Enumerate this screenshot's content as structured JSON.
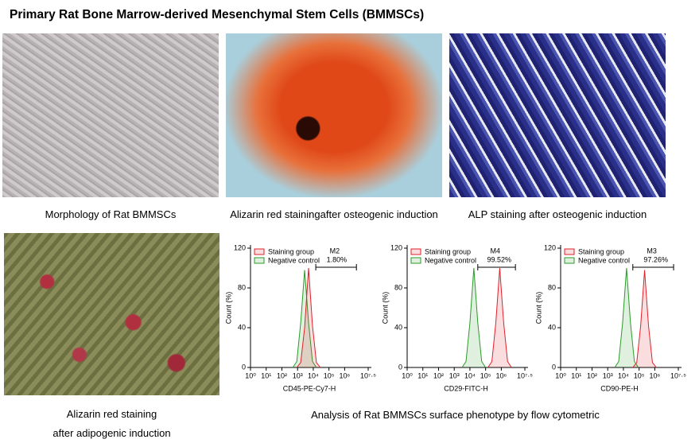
{
  "title": "Primary Rat Bone Marrow-derived Mesenchymal Stem Cells (BMMSCs)",
  "panels": [
    {
      "caption": "Morphology of Rat BMMSCs"
    },
    {
      "caption": "Alizarin red stainingafter osteogenic induction"
    },
    {
      "caption": "ALP staining after osteogenic induction"
    },
    {
      "caption": [
        "Alizarin red staining",
        "after adipogenic induction"
      ]
    }
  ],
  "flow_caption": "Analysis of Rat BMMSCs surface phenotype by flow cytometric",
  "chart_data": [
    {
      "type": "histogram-overlay",
      "xlabel": "CD45-PE-Cy7-H",
      "ylabel": "Count (%)",
      "log_scale": true,
      "xlim": [
        1,
        31622777
      ],
      "ylim": [
        0,
        120
      ],
      "yticks": [
        0,
        40,
        80,
        120
      ],
      "xticks": [
        {
          "value": 1,
          "label": "10⁰"
        },
        {
          "value": 10,
          "label": "10¹"
        },
        {
          "value": 100,
          "label": "10²"
        },
        {
          "value": 1000,
          "label": "10³"
        },
        {
          "value": 10000,
          "label": "10⁴"
        },
        {
          "value": 100000,
          "label": "10⁵"
        },
        {
          "value": 1000000,
          "label": "10⁶"
        },
        {
          "value": 31622777,
          "label": "10⁷·⁵"
        }
      ],
      "series": [
        {
          "name": "Staining group",
          "color": "#e0202a",
          "x": [
            891,
            1585,
            2818,
            5012,
            8913,
            15849,
            28184
          ],
          "values": [
            0,
            5,
            40,
            100,
            42,
            5,
            0
          ]
        },
        {
          "name": "Negative control",
          "color": "#2a9a2a",
          "x": [
            501,
            891,
            1585,
            2818,
            5012,
            8913,
            15849
          ],
          "values": [
            0,
            6,
            45,
            98,
            45,
            6,
            0
          ]
        }
      ],
      "gate": {
        "name": "M2",
        "label": "1.80%",
        "range": [
          14454,
          5623413
        ]
      }
    },
    {
      "type": "histogram-overlay",
      "xlabel": "CD29-FITC-H",
      "ylabel": "Count (%)",
      "log_scale": true,
      "xlim": [
        1,
        31622777
      ],
      "ylim": [
        0,
        120
      ],
      "yticks": [
        0,
        40,
        80,
        120
      ],
      "xticks": [
        {
          "value": 1,
          "label": "10⁰"
        },
        {
          "value": 10,
          "label": "10¹"
        },
        {
          "value": 100,
          "label": "10²"
        },
        {
          "value": 1000,
          "label": "10³"
        },
        {
          "value": 10000,
          "label": "10⁴"
        },
        {
          "value": 100000,
          "label": "10⁵"
        },
        {
          "value": 1000000,
          "label": "10⁶"
        },
        {
          "value": 31622777,
          "label": "10⁷·⁵"
        }
      ],
      "series": [
        {
          "name": "Staining group",
          "color": "#e0202a",
          "x": [
            141254,
            251189,
            446684,
            794328,
            1412538,
            2511886,
            4466836
          ],
          "values": [
            0,
            6,
            45,
            100,
            45,
            6,
            0
          ]
        },
        {
          "name": "Negative control",
          "color": "#2a9a2a",
          "x": [
            3162,
            5623,
            10000,
            17783,
            31623,
            56234,
            100000
          ],
          "values": [
            0,
            6,
            45,
            100,
            45,
            6,
            0
          ]
        }
      ],
      "gate": {
        "name": "M4",
        "label": "99.52%",
        "range": [
          31623,
          7943282
        ]
      }
    },
    {
      "type": "histogram-overlay",
      "xlabel": "CD90-PE-H",
      "ylabel": "Count (%)",
      "log_scale": true,
      "xlim": [
        1,
        31622777
      ],
      "ylim": [
        0,
        120
      ],
      "yticks": [
        0,
        40,
        80,
        120
      ],
      "xticks": [
        {
          "value": 1,
          "label": "10⁰"
        },
        {
          "value": 10,
          "label": "10¹"
        },
        {
          "value": 100,
          "label": "10²"
        },
        {
          "value": 1000,
          "label": "10³"
        },
        {
          "value": 10000,
          "label": "10⁴"
        },
        {
          "value": 100000,
          "label": "10⁵"
        },
        {
          "value": 1000000,
          "label": "10⁶"
        },
        {
          "value": 31622777,
          "label": "10⁷·⁵"
        }
      ],
      "series": [
        {
          "name": "Staining group",
          "color": "#e0202a",
          "x": [
            39811,
            70795,
            125893,
            223872,
            398107,
            707946,
            1258925
          ],
          "values": [
            0,
            5,
            42,
            98,
            42,
            5,
            0
          ]
        },
        {
          "name": "Negative control",
          "color": "#2a9a2a",
          "x": [
            2818,
            5012,
            8913,
            15849,
            28184,
            50119,
            89125
          ],
          "values": [
            0,
            6,
            45,
            100,
            45,
            6,
            0
          ]
        }
      ],
      "gate": {
        "name": "M3",
        "label": "97.26%",
        "range": [
          39811,
          15848932
        ]
      }
    }
  ]
}
